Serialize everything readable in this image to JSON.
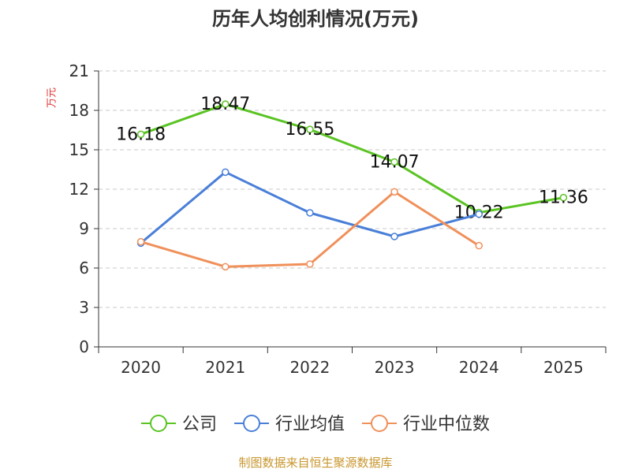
{
  "chart_data": {
    "type": "line",
    "title": "历年人均创利情况(万元)",
    "ylabel": "万元",
    "xlabel": "",
    "categories": [
      "2020",
      "2021",
      "2022",
      "2023",
      "2024",
      "2025"
    ],
    "ylim": [
      0,
      21
    ],
    "yticks": [
      0,
      3,
      6,
      9,
      12,
      15,
      18,
      21
    ],
    "grid": true,
    "legend": "bottom",
    "series": [
      {
        "name": "公司",
        "color": "#5ac423",
        "values": [
          16.18,
          18.47,
          16.55,
          14.07,
          10.22,
          11.36
        ],
        "labels": [
          "16.18",
          "18.47",
          "16.55",
          "14.07",
          "10.22",
          "11.36"
        ]
      },
      {
        "name": "行业均值",
        "color": "#4a7fd8",
        "values": [
          7.9,
          13.3,
          10.2,
          8.4,
          10.1,
          null
        ]
      },
      {
        "name": "行业中位数",
        "color": "#f0905a",
        "values": [
          8.0,
          6.1,
          6.3,
          11.8,
          7.7,
          null
        ]
      }
    ]
  },
  "source_text": "制图数据来自恒生聚源数据库"
}
